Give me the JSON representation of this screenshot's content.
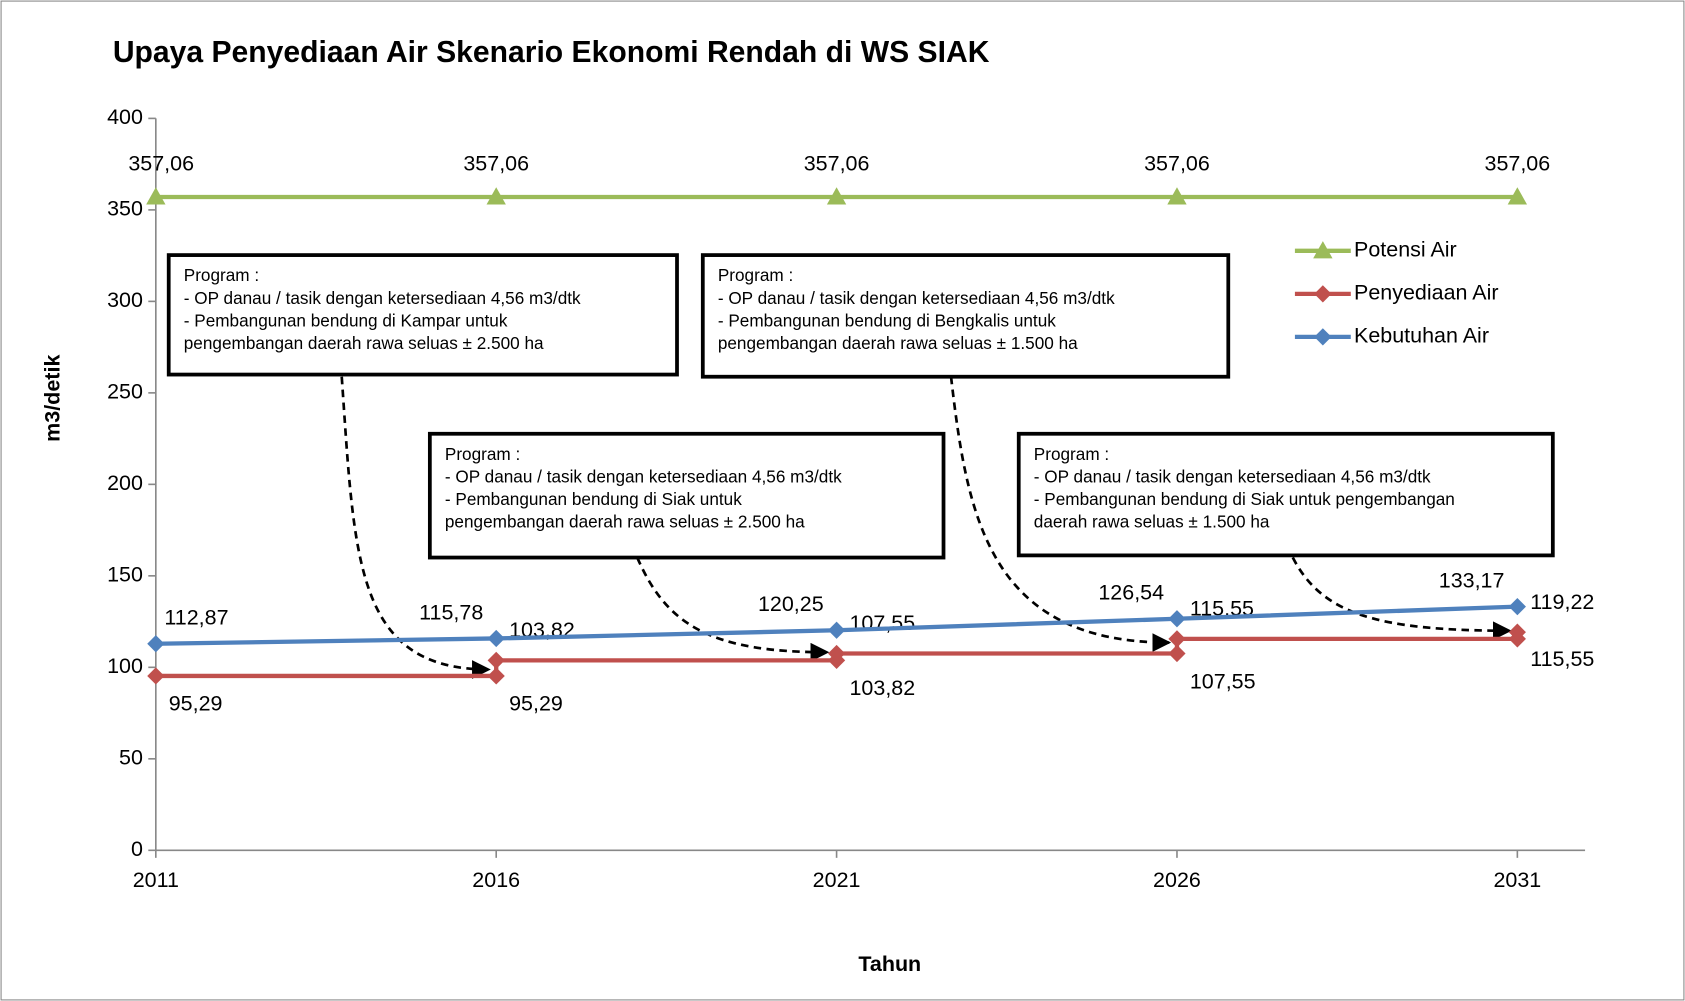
{
  "chart_data": {
    "type": "line",
    "title": "Upaya Penyediaan Air Skenario Ekonomi Rendah di WS SIAK",
    "x_label": "Tahun",
    "y_label": "m3/detik",
    "xlim": [
      2011,
      2032
    ],
    "xticks": [
      2011,
      2016,
      2021,
      2026,
      2031
    ],
    "ylim": [
      0,
      400
    ],
    "yticks": [
      0,
      50,
      100,
      150,
      200,
      250,
      300,
      350,
      400
    ],
    "legend": "right",
    "grid": false,
    "series": [
      {
        "name": "Potensi Air",
        "color": "#9bbb59",
        "marker": "triangle",
        "x": [
          2011,
          2016,
          2021,
          2026,
          2031
        ],
        "values": [
          357.06,
          357.06,
          357.06,
          357.06,
          357.06
        ],
        "value_labels": [
          "357,06",
          "357,06",
          "357,06",
          "357,06",
          "357,06"
        ]
      },
      {
        "name": "Penyediaan Air",
        "color": "#c0504d",
        "marker": "diamond",
        "x": [
          2011,
          2016,
          2016,
          2021,
          2021,
          2026,
          2026,
          2031,
          2031
        ],
        "values": [
          95.29,
          95.29,
          103.82,
          103.82,
          107.55,
          107.55,
          115.55,
          115.55,
          119.22
        ],
        "value_labels": [
          "95,29",
          "95,29",
          "103,82",
          "103,82",
          "107,55",
          "107,55",
          "115,55",
          "115,55",
          "119,22"
        ]
      },
      {
        "name": "Kebutuhan Air",
        "color": "#4f81bd",
        "marker": "diamond",
        "x": [
          2011,
          2016,
          2021,
          2026,
          2031
        ],
        "values": [
          112.87,
          115.78,
          120.25,
          126.54,
          133.17
        ],
        "value_labels": [
          "112,87",
          "115,78",
          "120,25",
          "126,54",
          "133,17"
        ]
      }
    ],
    "annotations": [
      {
        "lines": [
          "Program :",
          "- OP danau / tasik dengan ketersediaan 4,56 m3/dtk",
          "- Pembangunan bendung di Kampar untuk",
          "pengembangan daerah rawa seluas ± 2.500 ha"
        ]
      },
      {
        "lines": [
          "Program :",
          "- OP danau / tasik dengan ketersediaan 4,56 m3/dtk",
          "- Pembangunan bendung di Siak untuk",
          "pengembangan daerah rawa seluas ± 2.500 ha"
        ]
      },
      {
        "lines": [
          "Program :",
          "- OP danau / tasik dengan ketersediaan 4,56 m3/dtk",
          "- Pembangunan bendung di Bengkalis untuk",
          "pengembangan daerah rawa seluas ± 1.500 ha"
        ]
      },
      {
        "lines": [
          "Program :",
          "- OP danau / tasik dengan ketersediaan 4,56 m3/dtk",
          "- Pembangunan bendung di Siak untuk pengembangan",
          "daerah rawa seluas ± 1.500 ha"
        ]
      }
    ]
  }
}
